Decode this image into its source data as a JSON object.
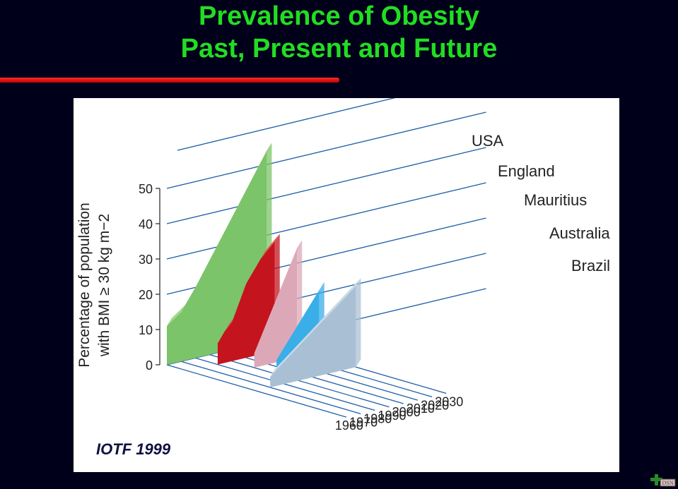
{
  "slide": {
    "title_line1": "Prevalence of Obesity",
    "title_line2": "Past, Present and Future",
    "credit": "IOTF 1999"
  },
  "chart_data": {
    "type": "area",
    "ylabel_line1": "Percentage of population",
    "ylabel_line2": "with BMI ≥ 30 kg m−2",
    "yticks": [
      0,
      10,
      20,
      30,
      40,
      50
    ],
    "ylim": [
      0,
      50
    ],
    "xticks": [
      "1960",
      "1970",
      "1980",
      "1990",
      "2000",
      "2010",
      "2020",
      "2030"
    ],
    "series": [
      {
        "name": "USA",
        "color": "#7cc46a",
        "top": "#a7d98e",
        "points": [
          [
            1960,
            11
          ],
          [
            1970,
            14
          ],
          [
            1980,
            20
          ],
          [
            2030,
            54
          ]
        ]
      },
      {
        "name": "England",
        "color": "#c4141e",
        "top": "#e0504a",
        "points": [
          [
            1980,
            6
          ],
          [
            1985,
            9
          ],
          [
            1990,
            11
          ],
          [
            2000,
            21
          ],
          [
            2010,
            27
          ],
          [
            2020,
            31
          ]
        ]
      },
      {
        "name": "Mauritius",
        "color": "#dca8b8",
        "top": "#ecc8d3",
        "points": [
          [
            1990,
            4
          ],
          [
            2020,
            31
          ]
        ]
      },
      {
        "name": "Australia",
        "color": "#3aaee8",
        "top": "#8ccdf2",
        "points": [
          [
            1990,
            4
          ],
          [
            2020,
            21
          ]
        ]
      },
      {
        "name": "Brazil",
        "color": "#a9c0d4",
        "top": "#c9d9e6",
        "points": [
          [
            1970,
            3
          ],
          [
            2030,
            23
          ]
        ]
      }
    ]
  },
  "logo_text": "DSN"
}
